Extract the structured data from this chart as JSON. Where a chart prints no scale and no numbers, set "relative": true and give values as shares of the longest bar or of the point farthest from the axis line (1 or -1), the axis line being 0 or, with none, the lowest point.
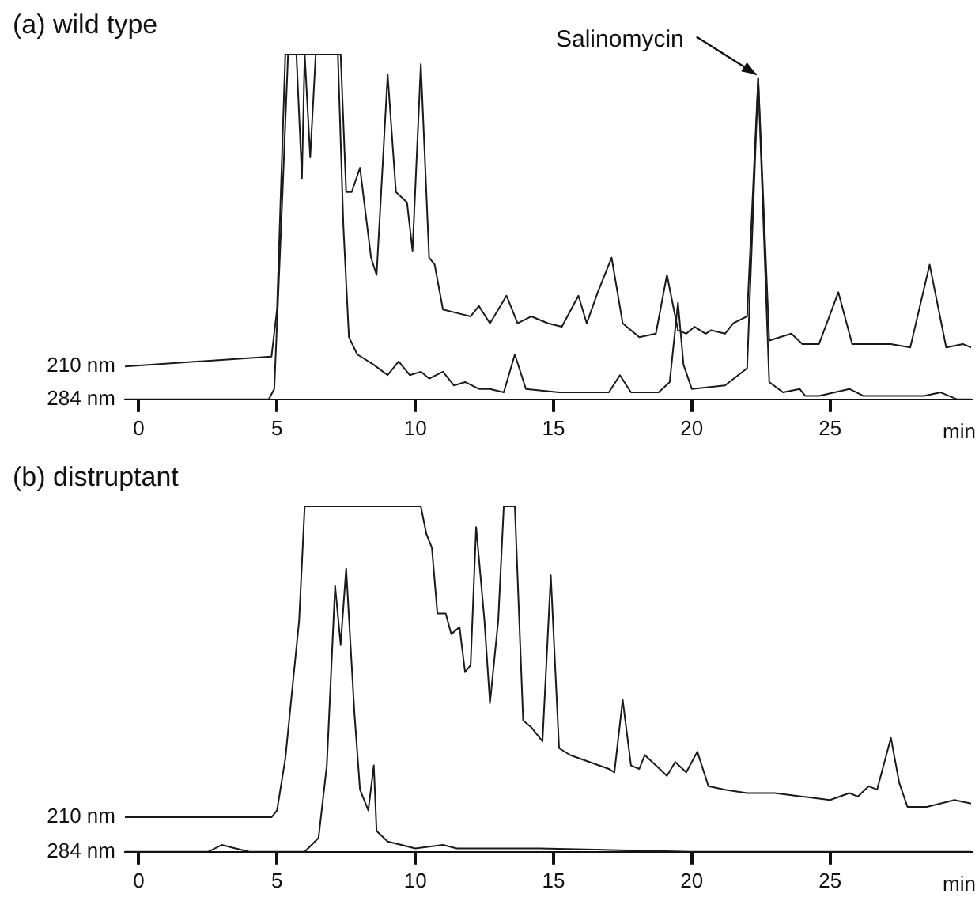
{
  "chart_data": [
    {
      "type": "line",
      "title": "(a) wild type",
      "xlabel": "min",
      "relative": true,
      "marker": "none",
      "legend": "left",
      "xlim": [
        -0.5,
        30.1
      ],
      "xticks": [
        0,
        5,
        10,
        15,
        20,
        25
      ],
      "annotations": [
        {
          "text": "Salinomycin",
          "x": 22.4,
          "y": 0.93
        }
      ],
      "series": [
        {
          "name": "210 nm",
          "color": "#1a1a1a",
          "x": [
            -0.5,
            4.8,
            5.0,
            5.3,
            5.7,
            5.9,
            6.0,
            6.2,
            6.4,
            7.3,
            7.5,
            7.7,
            8.0,
            8.4,
            8.6,
            9.0,
            9.3,
            9.7,
            9.9,
            10.2,
            10.5,
            10.7,
            11.0,
            11.5,
            12.0,
            12.3,
            12.7,
            13.3,
            13.7,
            14.2,
            14.8,
            15.3,
            15.9,
            16.2,
            16.6,
            17.1,
            17.5,
            18.1,
            18.7,
            19.1,
            19.5,
            19.8,
            20.1,
            20.5,
            20.7,
            21.2,
            21.5,
            22.0,
            22.4,
            22.8,
            23.6,
            24.0,
            24.6,
            25.3,
            25.8,
            27.2,
            27.9,
            28.6,
            29.2,
            29.8,
            30.1
          ],
          "values": [
            0.095,
            0.124,
            0.26,
            1,
            1,
            0.64,
            1,
            0.7,
            1,
            1,
            0.6,
            0.6,
            0.67,
            0.41,
            0.36,
            0.94,
            0.6,
            0.57,
            0.43,
            0.97,
            0.41,
            0.39,
            0.26,
            0.25,
            0.24,
            0.27,
            0.22,
            0.3,
            0.22,
            0.24,
            0.22,
            0.21,
            0.3,
            0.22,
            0.31,
            0.41,
            0.22,
            0.18,
            0.19,
            0.36,
            0.2,
            0.19,
            0.21,
            0.19,
            0.2,
            0.19,
            0.22,
            0.24,
            0.93,
            0.17,
            0.19,
            0.16,
            0.16,
            0.31,
            0.16,
            0.16,
            0.15,
            0.39,
            0.15,
            0.16,
            0.15
          ]
        },
        {
          "name": "284 nm",
          "color": "#1a1a1a",
          "x": [
            -0.5,
            4.7,
            4.9,
            5.2,
            5.4,
            7.2,
            7.4,
            7.6,
            7.9,
            8.5,
            9.0,
            9.4,
            9.8,
            10.2,
            10.5,
            11.0,
            11.4,
            11.8,
            12.3,
            12.7,
            13.2,
            13.6,
            14.0,
            15.2,
            16.4,
            17.0,
            17.4,
            17.8,
            18.8,
            19.2,
            19.5,
            19.7,
            20.0,
            21.2,
            22.0,
            22.4,
            22.8,
            23.3,
            23.9,
            24.1,
            24.6,
            25.7,
            26.2,
            28.4,
            29.0,
            29.6,
            30.1
          ],
          "values": [
            0,
            0,
            0.03,
            0.6,
            1,
            1,
            0.5,
            0.18,
            0.13,
            0.1,
            0.07,
            0.11,
            0.07,
            0.08,
            0.06,
            0.08,
            0.04,
            0.05,
            0.03,
            0.03,
            0.02,
            0.13,
            0.03,
            0.02,
            0.02,
            0.02,
            0.07,
            0.02,
            0.02,
            0.05,
            0.28,
            0.1,
            0.03,
            0.04,
            0.09,
            0.93,
            0.05,
            0.02,
            0.03,
            0.01,
            0.01,
            0.03,
            0.01,
            0.01,
            0.02,
            0,
            0
          ]
        }
      ]
    },
    {
      "type": "line",
      "title": "(b) distruptant",
      "xlabel": "min",
      "relative": true,
      "marker": "none",
      "legend": "left",
      "xlim": [
        -0.5,
        30.1
      ],
      "xticks": [
        0,
        5,
        10,
        15,
        20,
        25
      ],
      "series": [
        {
          "name": "210 nm",
          "color": "#1a1a1a",
          "x": [
            -0.5,
            4.8,
            5.0,
            5.3,
            5.5,
            5.8,
            6.0,
            10.2,
            10.4,
            10.6,
            10.8,
            11.1,
            11.3,
            11.6,
            11.8,
            12.0,
            12.2,
            12.5,
            12.7,
            13.0,
            13.2,
            13.6,
            13.9,
            14.2,
            14.6,
            14.9,
            15.2,
            15.6,
            17.0,
            17.2,
            17.5,
            17.8,
            18.1,
            18.3,
            18.7,
            19.1,
            19.4,
            19.8,
            20.2,
            20.6,
            21.2,
            22.0,
            23.0,
            24.0,
            25.0,
            25.7,
            26.0,
            26.4,
            26.7,
            27.2,
            27.5,
            27.8,
            28.5,
            29.5,
            30.1
          ],
          "values": [
            0.1,
            0.1,
            0.12,
            0.27,
            0.43,
            0.67,
            1,
            1,
            0.92,
            0.88,
            0.69,
            0.69,
            0.63,
            0.65,
            0.52,
            0.54,
            0.94,
            0.67,
            0.43,
            0.67,
            1,
            1,
            0.38,
            0.36,
            0.32,
            0.8,
            0.3,
            0.28,
            0.24,
            0.23,
            0.44,
            0.25,
            0.24,
            0.28,
            0.25,
            0.22,
            0.26,
            0.23,
            0.29,
            0.19,
            0.18,
            0.17,
            0.17,
            0.16,
            0.15,
            0.17,
            0.16,
            0.19,
            0.18,
            0.33,
            0.2,
            0.13,
            0.13,
            0.15,
            0.14
          ]
        },
        {
          "name": "284 nm",
          "color": "#1a1a1a",
          "x": [
            -0.5,
            2.5,
            3.0,
            3.5,
            4.0,
            6.0,
            6.5,
            6.8,
            7.1,
            7.3,
            7.5,
            7.8,
            8.0,
            8.3,
            8.5,
            8.6,
            9.0,
            10.0,
            11.0,
            11.5,
            14.5,
            20.0,
            30.1
          ],
          "values": [
            0,
            0,
            0.02,
            0.01,
            0,
            0,
            0.04,
            0.25,
            0.77,
            0.6,
            0.82,
            0.4,
            0.18,
            0.12,
            0.25,
            0.06,
            0.03,
            0.01,
            0.02,
            0.01,
            0.01,
            0,
            0
          ]
        }
      ]
    }
  ]
}
